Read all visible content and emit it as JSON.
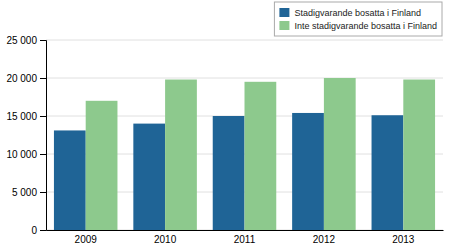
{
  "chart_data": {
    "type": "bar",
    "categories": [
      "2009",
      "2010",
      "2011",
      "2012",
      "2013"
    ],
    "series": [
      {
        "name": "Stadigvarande bosatta i Finland",
        "color": "#1f6496",
        "values": [
          13100,
          14000,
          15000,
          15400,
          15100
        ]
      },
      {
        "name": "Inte stadigvarande bosatta i Finland",
        "color": "#8dc98d",
        "values": [
          17000,
          19800,
          19500,
          20000,
          19800
        ]
      }
    ],
    "ylim": [
      0,
      25000
    ],
    "yticks": [
      0,
      {
        "value": 5000,
        "label": "5 000"
      },
      {
        "value": 10000,
        "label": "10 000"
      },
      {
        "value": 15000,
        "label": "15 000"
      },
      {
        "value": 20000,
        "label": "20 000"
      },
      {
        "value": 25000,
        "label": "25 000"
      }
    ],
    "grid": true,
    "legend": "upper right"
  }
}
